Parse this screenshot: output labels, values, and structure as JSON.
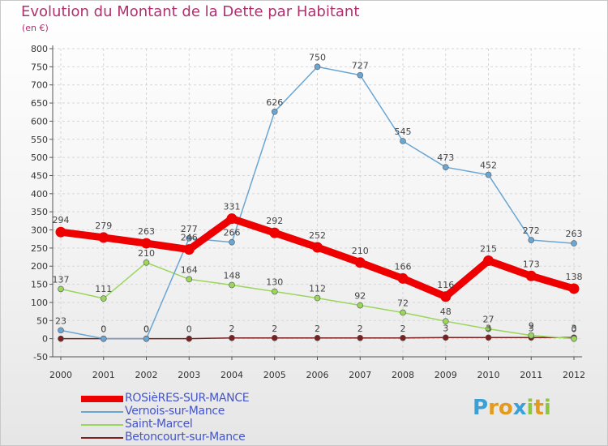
{
  "title": "Evolution du Montant de la Dette par Habitant",
  "subtitle": "(en €)",
  "logo": {
    "letters": [
      "P",
      "r",
      "o",
      "x",
      "i",
      "t",
      "i"
    ],
    "colors": [
      "#3aa0d8",
      "#e39b1f",
      "#e39b1f",
      "#3aa0d8",
      "#8cc63f",
      "#e39b1f",
      "#8cc63f"
    ]
  },
  "chart_data": {
    "type": "line",
    "x": [
      "2000",
      "2001",
      "2002",
      "2003",
      "2004",
      "2005",
      "2006",
      "2007",
      "2008",
      "2009",
      "2010",
      "2011",
      "2012"
    ],
    "ylim": [
      -50,
      800
    ],
    "yticks": [
      -50,
      0,
      50,
      100,
      150,
      200,
      250,
      300,
      350,
      400,
      450,
      500,
      550,
      600,
      650,
      700,
      750,
      800
    ],
    "grid": true,
    "legend_position": "bottom-left",
    "series": [
      {
        "name": "Betoncourt-sur-Mance",
        "color": "#7a2020",
        "labels": [
          "",
          "0",
          "0",
          "0",
          "2",
          "2",
          "2",
          "2",
          "2",
          "3",
          "3",
          "3",
          "3"
        ],
        "values": [
          0,
          0,
          0,
          0,
          2,
          2,
          2,
          2,
          2,
          3,
          3,
          3,
          3
        ]
      },
      {
        "name": "Saint-Marcel",
        "color": "#99d65b",
        "values": [
          137,
          111,
          210,
          164,
          148,
          130,
          112,
          92,
          72,
          48,
          27,
          9,
          0
        ]
      },
      {
        "name": "Vernois-sur-Mance",
        "color": "#6aa6d4",
        "values": [
          23,
          0,
          0,
          277,
          266,
          626,
          750,
          727,
          545,
          473,
          452,
          272,
          263
        ]
      },
      {
        "name": "ROSièRES-SUR-MANCE",
        "color": "#ee0000",
        "values": [
          294,
          279,
          263,
          246,
          331,
          292,
          252,
          210,
          166,
          116,
          215,
          173,
          138
        ]
      }
    ]
  }
}
